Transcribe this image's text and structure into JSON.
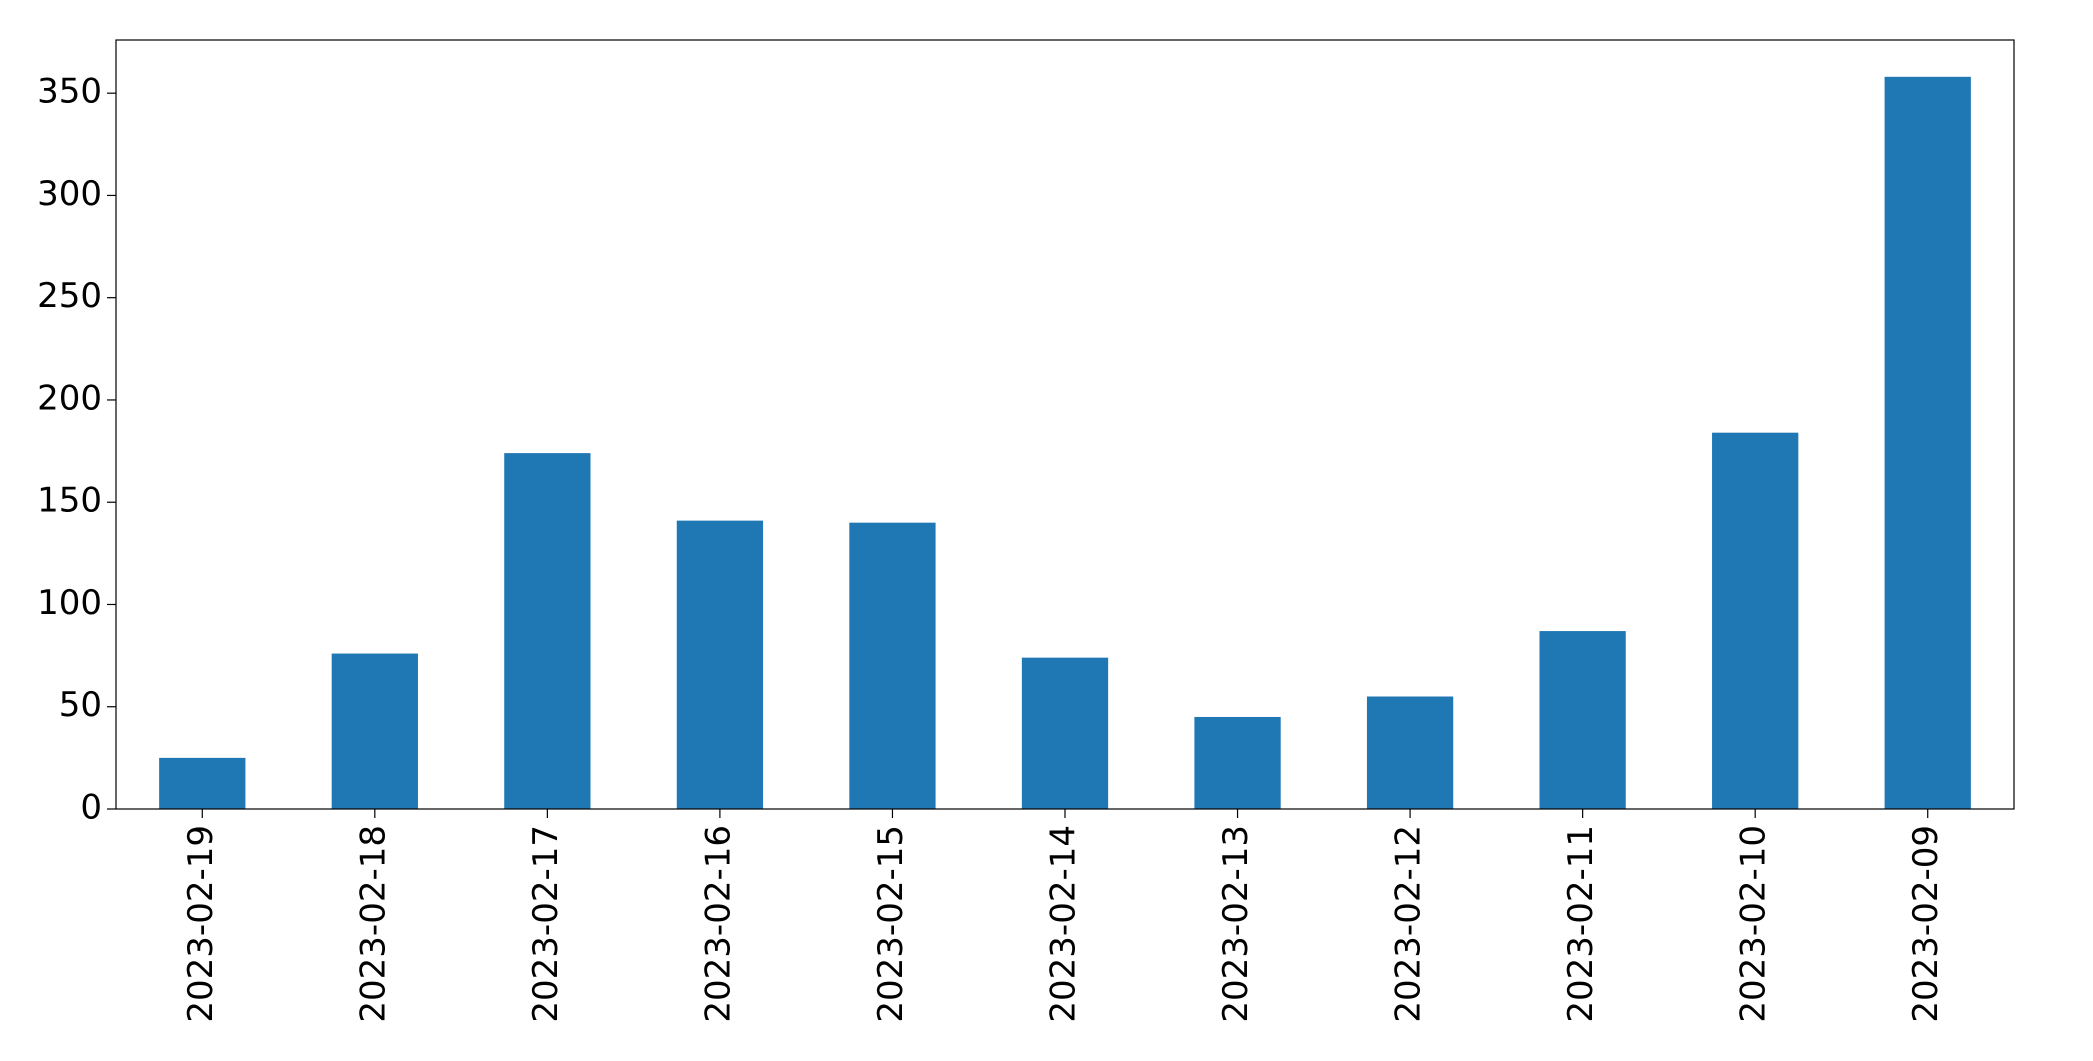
{
  "chart_data": {
    "type": "bar",
    "categories": [
      "2023-02-19",
      "2023-02-18",
      "2023-02-17",
      "2023-02-16",
      "2023-02-15",
      "2023-02-14",
      "2023-02-13",
      "2023-02-12",
      "2023-02-11",
      "2023-02-10",
      "2023-02-09"
    ],
    "values": [
      25,
      76,
      174,
      141,
      140,
      74,
      45,
      55,
      87,
      184,
      358
    ],
    "color": "#1f77b4",
    "ylim": [
      0,
      376
    ],
    "yticks": [
      0,
      50,
      100,
      150,
      200,
      250,
      300,
      350
    ],
    "grid": false
  }
}
